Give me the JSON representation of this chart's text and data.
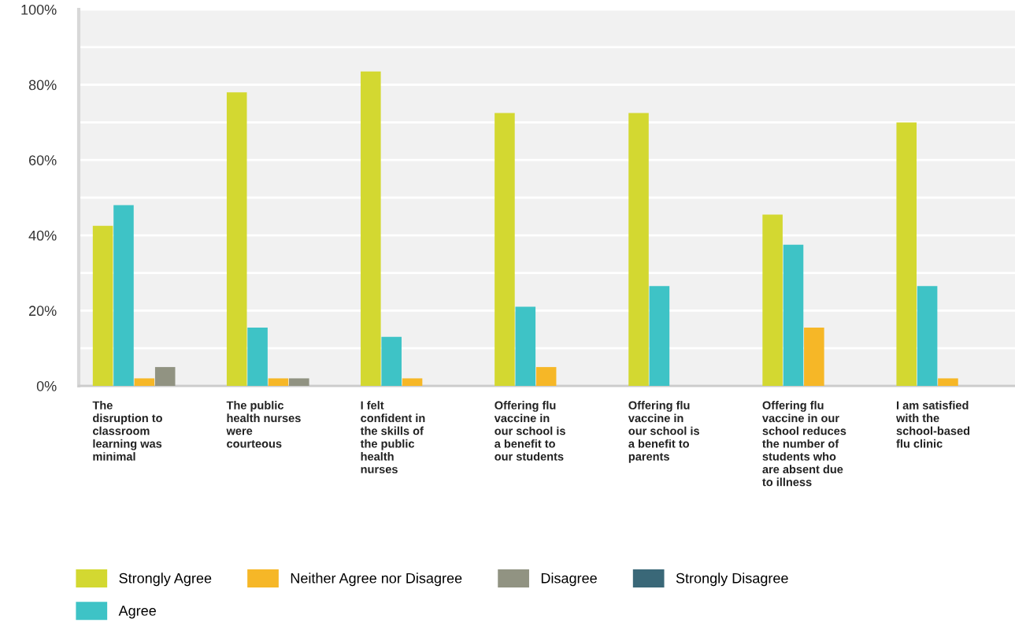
{
  "chart_data": {
    "type": "bar",
    "categories": [
      "The\ndisruption to\nclassroom\nlearning was\nminimal",
      "The public\nhealth nurses\nwere\ncourteous",
      "I felt\nconfident in\nthe skills of\nthe public\nhealth\nnurses",
      "Offering flu\nvaccine in\nour school is\na benefit to\nour students",
      "Offering flu\nvaccine in\nour school is\na benefit to\nparents",
      "Offering flu\nvaccine in our\nschool reduces\nthe number of\nstudents who\nare absent due\nto illness",
      "I am satisfied\nwith the\nschool-based\nflu clinic"
    ],
    "series": [
      {
        "name": "Strongly Agree",
        "color": "#d3d831",
        "values": [
          42.5,
          78,
          83.5,
          72.5,
          72.5,
          45.5,
          70
        ]
      },
      {
        "name": "Agree",
        "color": "#3ec3c6",
        "values": [
          48,
          15.5,
          13,
          21,
          26.5,
          37.5,
          26.5
        ]
      },
      {
        "name": "Neither Agree nor Disagree",
        "color": "#f6b727",
        "values": [
          2,
          2,
          2,
          5,
          0,
          15.5,
          2
        ]
      },
      {
        "name": "Disagree",
        "color": "#919382",
        "values": [
          5,
          2,
          0,
          0,
          0,
          0,
          0
        ]
      },
      {
        "name": "Strongly Disagree",
        "color": "#3a6878",
        "values": [
          0,
          0,
          0,
          0,
          0,
          0,
          0
        ]
      }
    ],
    "ylim": [
      0,
      100
    ],
    "yticks": [
      {
        "value": 0,
        "label": "0%"
      },
      {
        "value": 10,
        "label": null
      },
      {
        "value": 20,
        "label": "20%"
      },
      {
        "value": 30,
        "label": null
      },
      {
        "value": 40,
        "label": "40%"
      },
      {
        "value": 50,
        "label": null
      },
      {
        "value": 60,
        "label": "60%"
      },
      {
        "value": 70,
        "label": null
      },
      {
        "value": 80,
        "label": "80%"
      },
      {
        "value": 90,
        "label": null
      },
      {
        "value": 100,
        "label": "100%"
      }
    ],
    "grid": "y",
    "legend": "bottom"
  }
}
